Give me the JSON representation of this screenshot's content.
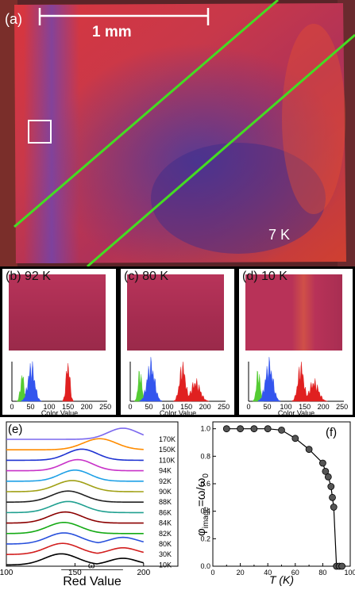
{
  "panel_a": {
    "label": "(a)",
    "scale_bar": "1 mm",
    "temperature": "7 K"
  },
  "small_panels": [
    {
      "label": "(b) 92 K",
      "axis_label": "Color Value",
      "ticks": [
        "0",
        "50",
        "100",
        "150",
        "200",
        "250"
      ]
    },
    {
      "label": "(c) 80 K",
      "axis_label": "Color Value",
      "ticks": [
        "0",
        "50",
        "100",
        "150",
        "200",
        "250"
      ]
    },
    {
      "label": "(d) 10 K",
      "axis_label": "Color Value",
      "ticks": [
        "0",
        "50",
        "100",
        "150",
        "200",
        "250"
      ]
    }
  ],
  "chart_data": [
    {
      "type": "line",
      "panel": "(e)",
      "xlabel": "Red Value",
      "x_ticks": [
        100,
        150,
        200
      ],
      "xlim": [
        100,
        225
      ],
      "annotation": "ω",
      "series": [
        {
          "name": "170K",
          "color": "#7b68ee",
          "peak": 185,
          "width": 11
        },
        {
          "name": "150K",
          "color": "#ff8c00",
          "peak": 168,
          "width": 12
        },
        {
          "name": "110K",
          "color": "#1e32d2",
          "peak": 155,
          "width": 11
        },
        {
          "name": "94K",
          "color": "#c832c8",
          "peak": 152,
          "width": 11
        },
        {
          "name": "92K",
          "color": "#1ea0e6",
          "peak": 150,
          "width": 11
        },
        {
          "name": "90K",
          "color": "#a0a014",
          "peak": 148,
          "width": 12
        },
        {
          "name": "88K",
          "color": "#222222",
          "peak": 145,
          "width": 12
        },
        {
          "name": "86K",
          "color": "#20a090",
          "peak": 145,
          "width": 12
        },
        {
          "name": "84K",
          "color": "#8b0000",
          "peak": 143,
          "width": 12
        },
        {
          "name": "82K",
          "color": "#14aa14",
          "peak": 142,
          "width": 12
        },
        {
          "name": "80K",
          "color": "#2850dc",
          "peak": 142,
          "width": 12
        },
        {
          "name": "30K",
          "color": "#d21e1e",
          "peak": 141,
          "width": 12
        },
        {
          "name": "10K",
          "color": "#000000",
          "peak": 140,
          "width": 12
        }
      ]
    },
    {
      "type": "scatter",
      "panel": "(f)",
      "ylabel_main": "φ",
      "ylabel_sub": "image",
      "ylabel_rest": "=ω/ω",
      "ylabel_sub2": "0",
      "xlabel": "T (K)",
      "xlim": [
        0,
        100
      ],
      "ylim": [
        0,
        1.05
      ],
      "x_ticks": [
        0,
        10,
        20,
        30,
        40,
        50,
        60,
        70,
        80,
        90,
        100
      ],
      "y_ticks": [
        0.0,
        0.2,
        0.4,
        0.6,
        0.8,
        1.0
      ],
      "x_tick_labels": [
        "0",
        "20",
        "40",
        "60",
        "80",
        "100"
      ],
      "y_tick_labels": [
        "0.0",
        "0.2",
        "0.4",
        "0.6",
        "0.8",
        "1.0"
      ],
      "points": [
        [
          10,
          1.0
        ],
        [
          20,
          1.0
        ],
        [
          30,
          1.0
        ],
        [
          40,
          1.0
        ],
        [
          50,
          0.99
        ],
        [
          60,
          0.93
        ],
        [
          70,
          0.85
        ],
        [
          80,
          0.75
        ],
        [
          82,
          0.69
        ],
        [
          84,
          0.65
        ],
        [
          86,
          0.58
        ],
        [
          87,
          0.5
        ],
        [
          88,
          0.43
        ],
        [
          90,
          0.0
        ],
        [
          92,
          0.0
        ],
        [
          94,
          0.0
        ]
      ]
    }
  ]
}
